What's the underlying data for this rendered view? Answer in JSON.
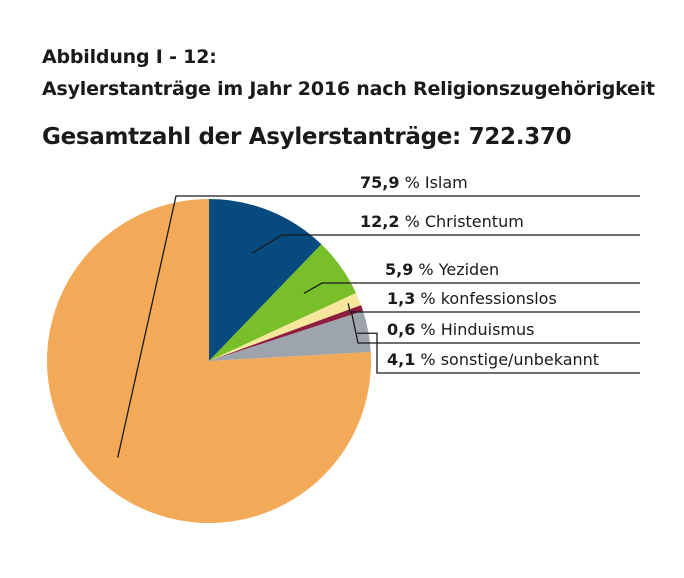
{
  "heading": {
    "line1": "Abbildung I - 12:",
    "line2": "Asylerstanträge im Jahr 2016 nach Religionszugehörigkeit",
    "total": "Gesamtzahl der Asylerstanträge: 722.370"
  },
  "chart_data": {
    "type": "pie",
    "title": "Asylerstanträge im Jahr 2016 nach Religionszugehörigkeit",
    "legend": "right",
    "slices": [
      {
        "pct": "75,9",
        "unit": "%",
        "label": "Islam",
        "value": 75.9,
        "color": "#f3aa58"
      },
      {
        "pct": "12,2",
        "unit": "%",
        "label": "Christentum",
        "value": 12.2,
        "color": "#064a7e"
      },
      {
        "pct": "5,9",
        "unit": "%",
        "label": "Yeziden",
        "value": 5.9,
        "color": "#78bf2a"
      },
      {
        "pct": "1,3",
        "unit": "%",
        "label": "konfessionslos",
        "value": 1.3,
        "color": "#f6e79c"
      },
      {
        "pct": "0,6",
        "unit": "%",
        "label": "Hinduismus",
        "value": 0.6,
        "color": "#8c1d3d"
      },
      {
        "pct": "4,1",
        "unit": "%",
        "label": "sonstige/unbekannt",
        "value": 4.1,
        "color": "#9ea4ab"
      }
    ]
  }
}
